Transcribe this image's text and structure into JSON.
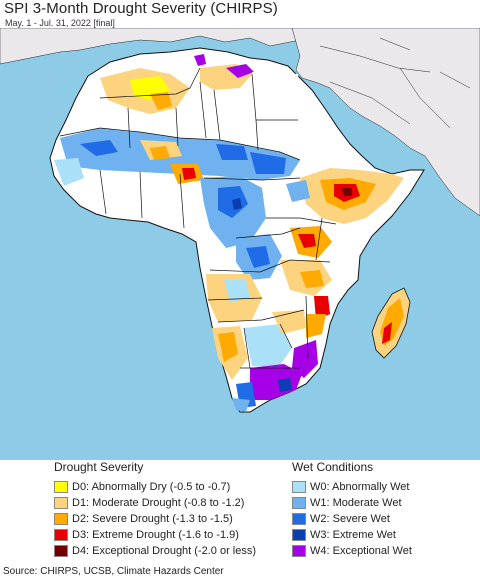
{
  "title": "SPI 3-Month Drought Severity (CHIRPS)",
  "subtitle": "May. 1 - Jul. 31, 2022 [final]",
  "colors": {
    "ocean": "#8ecbe6",
    "land_outside": "#ebe8ec",
    "land_normal": "#ffffff",
    "border": "#111111"
  },
  "legend": {
    "drought": {
      "heading": "Drought Severity",
      "items": [
        {
          "label": "D0: Abnormally Dry (-0.5 to -0.7)",
          "color": "#ffff00"
        },
        {
          "label": "D1: Moderate Drought (-0.8 to -1.2)",
          "color": "#fcd37f"
        },
        {
          "label": "D2: Severe Drought (-1.3 to -1.5)",
          "color": "#ffaa00"
        },
        {
          "label": "D3: Extreme Drought (-1.6 to -1.9)",
          "color": "#e60000"
        },
        {
          "label": "D4: Exceptional Drought (-2.0 or less)",
          "color": "#730000"
        }
      ]
    },
    "wet": {
      "heading": "Wet Conditions",
      "items": [
        {
          "label": "W0: Abnormally Wet",
          "color": "#aae0f8"
        },
        {
          "label": "W1: Moderate Wet",
          "color": "#6fb2ef"
        },
        {
          "label": "W2: Severe Wet",
          "color": "#1f6ce6"
        },
        {
          "label": "W3: Extreme Wet",
          "color": "#0b3fb1"
        },
        {
          "label": "W4: Exceptional Wet",
          "color": "#a500e6"
        }
      ]
    }
  },
  "source": "Source: CHIRPS, UCSB, Climate Hazards Center"
}
